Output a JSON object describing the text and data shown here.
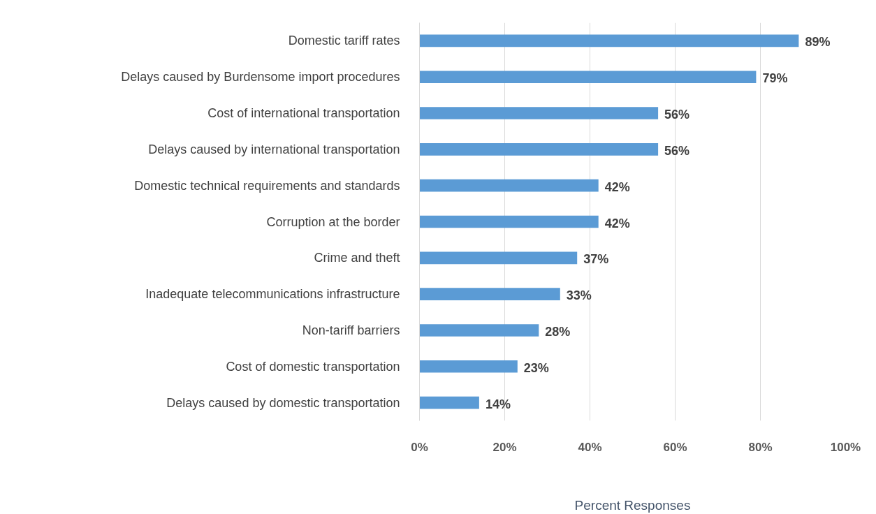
{
  "chart_data": {
    "type": "bar",
    "orientation": "horizontal",
    "categories": [
      "Domestic tariff rates",
      "Delays caused by Burdensome import procedures",
      "Cost of international transportation",
      "Delays caused by international transportation",
      "Domestic technical requirements and standards",
      "Corruption at the border",
      "Crime and theft",
      "Inadequate telecommunications infrastructure",
      "Non-tariff barriers",
      "Cost of domestic transportation",
      "Delays caused by domestic transportation"
    ],
    "values": [
      89,
      79,
      56,
      56,
      42,
      42,
      37,
      33,
      28,
      23,
      14
    ],
    "value_labels": [
      "89%",
      "79%",
      "56%",
      "56%",
      "42%",
      "42%",
      "37%",
      "33%",
      "28%",
      "23%",
      "14%"
    ],
    "color": "#5b9bd5",
    "xlabel": "Percent Responses",
    "xlim": [
      0,
      100
    ],
    "xticks": [
      {
        "value": 0,
        "label": "0%"
      },
      {
        "value": 20,
        "label": "20%"
      },
      {
        "value": 40,
        "label": "40%"
      },
      {
        "value": 60,
        "label": "60%"
      },
      {
        "value": 80,
        "label": "80%"
      },
      {
        "value": 100,
        "label": "100%"
      }
    ],
    "grid": "x"
  }
}
